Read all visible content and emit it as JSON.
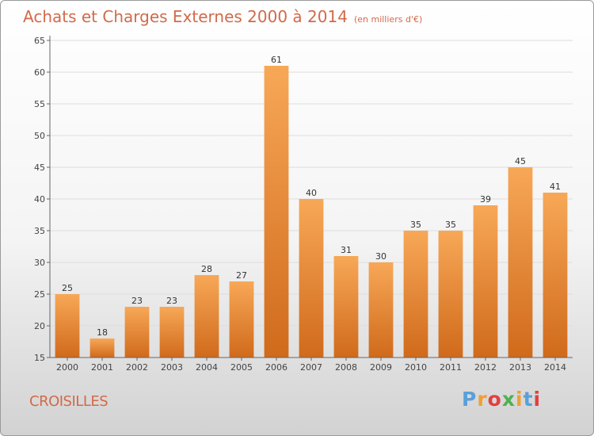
{
  "chart_data": {
    "type": "bar",
    "title": "Achats et Charges Externes 2000 à 2014",
    "subtitle": "(en milliers d'€)",
    "categories": [
      "2000",
      "2001",
      "2002",
      "2003",
      "2004",
      "2005",
      "2006",
      "2007",
      "2008",
      "2009",
      "2010",
      "2011",
      "2012",
      "2013",
      "2014"
    ],
    "values": [
      25,
      18,
      23,
      23,
      28,
      27,
      61,
      40,
      31,
      30,
      35,
      35,
      39,
      45,
      41
    ],
    "ylim": [
      15,
      65
    ],
    "yticks": [
      15,
      20,
      25,
      30,
      35,
      40,
      45,
      50,
      55,
      60,
      65
    ],
    "grid": true,
    "bar_color_top": "#f7a857",
    "bar_color_bottom": "#d06a1b"
  },
  "footer": {
    "city": "CROISILLES",
    "logo_text": "Proxiti",
    "logo_colors": [
      "#5aa0d8",
      "#f0a030",
      "#e04040",
      "#50b050",
      "#f0a030",
      "#5aa0d8",
      "#e04040"
    ]
  }
}
